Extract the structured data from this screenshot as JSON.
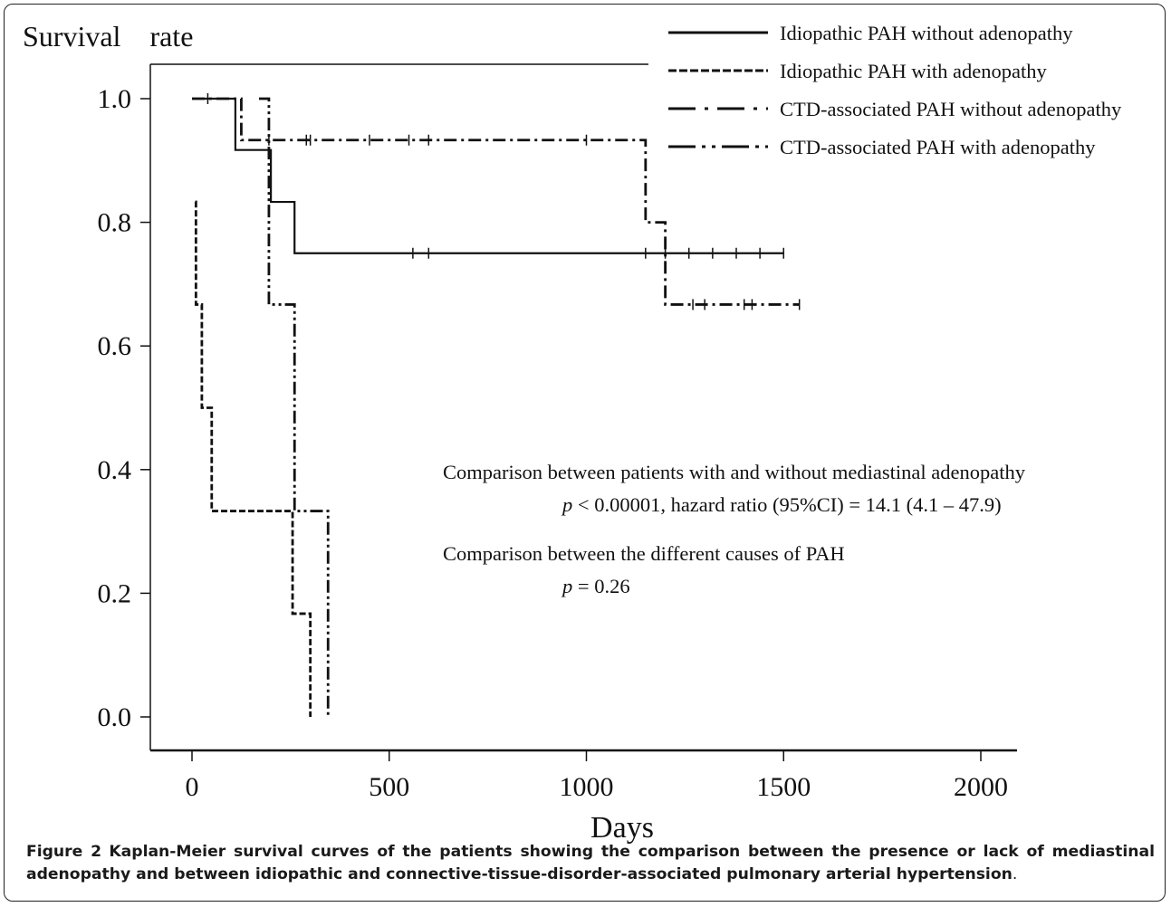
{
  "chart_data": {
    "type": "line",
    "subtype": "kaplan-meier step",
    "ylabel": "Survival    rate",
    "xlabel": "Days",
    "xlim": [
      -100,
      2100
    ],
    "ylim": [
      0,
      1.0
    ],
    "x_ticks": [
      0,
      500,
      1000,
      1500,
      2000
    ],
    "x_tick_labels": [
      "0",
      "500",
      "1000",
      "1500",
      "2000"
    ],
    "y_ticks": [
      0.0,
      0.2,
      0.4,
      0.6,
      0.8,
      1.0
    ],
    "y_tick_labels": [
      "0.0",
      "0.2",
      "0.4",
      "0.6",
      "0.8",
      "1.0"
    ],
    "grid": false,
    "legend_position": "top-right",
    "series": [
      {
        "name": "Idiopathic PAH without adenopathy",
        "line_style": "solid",
        "steps": [
          [
            0,
            1.0
          ],
          [
            110,
            0.917
          ],
          [
            200,
            0.833
          ],
          [
            260,
            0.75
          ],
          [
            1500,
            0.75
          ]
        ],
        "censor_times": [
          40,
          560,
          600,
          1150,
          1200,
          1260,
          1320,
          1380,
          1440,
          1500
        ]
      },
      {
        "name": "Idiopathic PAH with adenopathy",
        "line_style": "dashed",
        "steps": [
          [
            8,
            0.833
          ],
          [
            10,
            0.667
          ],
          [
            25,
            0.5
          ],
          [
            50,
            0.333
          ],
          [
            255,
            0.167
          ],
          [
            300,
            0.0
          ]
        ],
        "censor_times": []
      },
      {
        "name": "CTD-associated PAH without adenopathy",
        "line_style": "dash-dot",
        "steps": [
          [
            0,
            1.0
          ],
          [
            125,
            0.933
          ],
          [
            1150,
            0.8
          ],
          [
            1200,
            0.667
          ],
          [
            1540,
            0.667
          ]
        ],
        "censor_times": [
          195,
          290,
          300,
          450,
          550,
          600,
          1000,
          1270,
          1300,
          1400,
          1420,
          1540
        ]
      },
      {
        "name": "CTD-associated PAH with adenopathy",
        "line_style": "dash-dot-dot",
        "steps": [
          [
            170,
            1.0
          ],
          [
            195,
            0.667
          ],
          [
            260,
            0.333
          ],
          [
            345,
            0.0
          ]
        ],
        "censor_times": []
      }
    ],
    "annotations": [
      {
        "text": "Comparison between patients with and without mediastinal adenopathy"
      },
      {
        "text": "p < 0.00001, hazard ratio (95%CI) = 14.1 (4.1 – 47.9)"
      },
      {
        "text": "Comparison between the different causes of PAH"
      },
      {
        "text": "p = 0.26"
      }
    ]
  },
  "caption": {
    "label": "Figure 2",
    "text": "Kaplan-Meier survival curves of the patients showing the comparison between the presence or lack of mediastinal adenopathy and between idiopathic and connective-tissue-disorder-associated pulmonary arterial hypertension",
    "end": "."
  },
  "colors": {
    "line": "#111111",
    "border": "#222222"
  }
}
